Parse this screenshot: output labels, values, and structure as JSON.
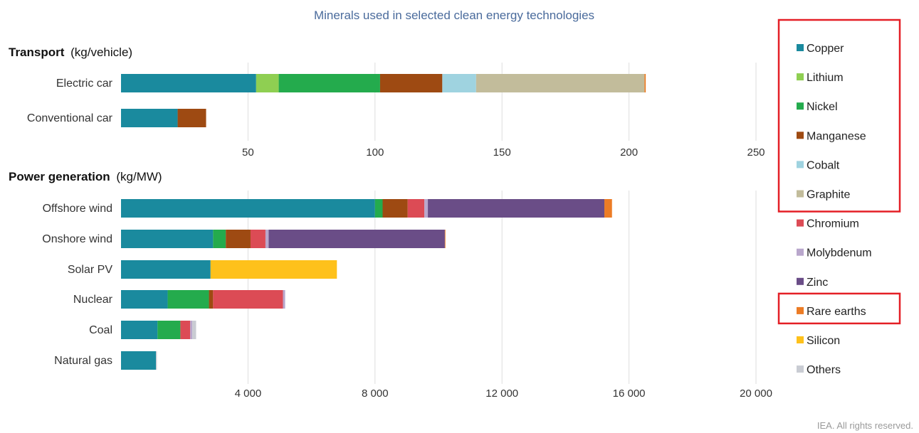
{
  "colors": {
    "Copper": "#1a8a9e",
    "Lithium": "#8fcf52",
    "Nickel": "#24ab4d",
    "Manganese": "#9e4a12",
    "Cobalt": "#9fd3e0",
    "Graphite": "#c2bc9b",
    "Chromium": "#dc4b55",
    "Molybdenum": "#b9a7cc",
    "Zinc": "#6a4d87",
    "Rare earths": "#ec7c25",
    "Silicon": "#fec11b",
    "Others": "#c9ccd3"
  },
  "highlight_color": "#e41f26",
  "credit": "IEA. All rights reserved.",
  "chart_data": [
    {
      "type": "bar",
      "orientation": "horizontal",
      "stacked": true,
      "title": "Minerals used in selected clean energy technologies",
      "section_title": "Transport",
      "section_unit": "(kg/vehicle)",
      "categories": [
        "Electric car",
        "Conventional car"
      ],
      "xlim": [
        0,
        250
      ],
      "xticks": [
        50,
        100,
        150,
        200,
        250
      ],
      "xtick_labels": [
        "50",
        "100",
        "150",
        "200",
        "250"
      ],
      "grid": true,
      "series": [
        {
          "name": "Copper",
          "values": [
            53.2,
            22.3
          ]
        },
        {
          "name": "Lithium",
          "values": [
            8.9,
            0
          ]
        },
        {
          "name": "Nickel",
          "values": [
            39.9,
            0
          ]
        },
        {
          "name": "Manganese",
          "values": [
            24.5,
            11.2
          ]
        },
        {
          "name": "Cobalt",
          "values": [
            13.3,
            0
          ]
        },
        {
          "name": "Graphite",
          "values": [
            66.3,
            0
          ]
        },
        {
          "name": "Rare earths",
          "values": [
            0.5,
            0
          ]
        }
      ]
    },
    {
      "type": "bar",
      "orientation": "horizontal",
      "stacked": true,
      "section_title": "Power generation",
      "section_unit": "(kg/MW)",
      "categories": [
        "Offshore wind",
        "Onshore wind",
        "Solar PV",
        "Nuclear",
        "Coal",
        "Natural gas"
      ],
      "xlim": [
        0,
        20000
      ],
      "xticks": [
        4000,
        8000,
        12000,
        16000,
        20000
      ],
      "xtick_labels": [
        "4 000",
        "8 000",
        "12 000",
        "16 000",
        "20 000"
      ],
      "grid": true,
      "series": [
        {
          "name": "Copper",
          "values": [
            8000,
            2900,
            2820,
            1470,
            1150,
            1100
          ]
        },
        {
          "name": "Nickel",
          "values": [
            240,
            400,
            0,
            1300,
            720,
            0
          ]
        },
        {
          "name": "Manganese",
          "values": [
            790,
            780,
            0,
            130,
            0,
            0
          ]
        },
        {
          "name": "Chromium",
          "values": [
            525,
            470,
            0,
            2200,
            310,
            0
          ]
        },
        {
          "name": "Molybdenum",
          "values": [
            110,
            100,
            0,
            70,
            65,
            0
          ]
        },
        {
          "name": "Zinc",
          "values": [
            5560,
            5550,
            0,
            0,
            0,
            0
          ]
        },
        {
          "name": "Rare earths",
          "values": [
            240,
            14,
            0,
            0,
            0,
            0
          ]
        },
        {
          "name": "Silicon",
          "values": [
            0,
            0,
            3980,
            0,
            0,
            0
          ]
        },
        {
          "name": "Others",
          "values": [
            0,
            0,
            0,
            0,
            120,
            30
          ]
        }
      ]
    }
  ],
  "legend": {
    "placement": "right",
    "items": [
      "Copper",
      "Lithium",
      "Nickel",
      "Manganese",
      "Cobalt",
      "Graphite",
      "Chromium",
      "Molybdenum",
      "Zinc",
      "Rare earths",
      "Silicon",
      "Others"
    ],
    "highlighted_groups": [
      [
        "Copper",
        "Lithium",
        "Nickel",
        "Manganese",
        "Cobalt",
        "Graphite"
      ],
      [
        "Rare earths"
      ]
    ]
  }
}
